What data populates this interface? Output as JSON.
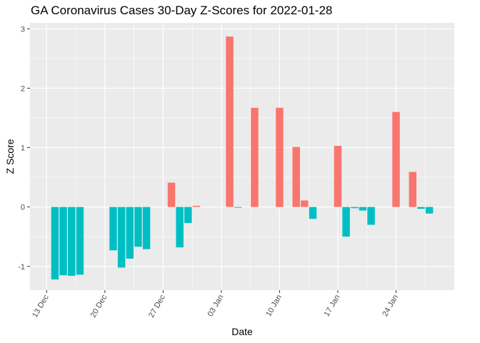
{
  "chart_data": {
    "type": "bar",
    "title": "GA Coronavirus Cases 30-Day Z-Scores for 2022-01-28",
    "xlabel": "Date",
    "ylabel": "Z Score",
    "ylim": [
      -1.4,
      3.1
    ],
    "y_ticks": [
      -1,
      0,
      1,
      2,
      3
    ],
    "x_range": [
      "2021-12-11",
      "2022-01-31"
    ],
    "x_ticks": [
      {
        "date": "2021-12-13",
        "label": "13 Dec"
      },
      {
        "date": "2021-12-20",
        "label": "20 Dec"
      },
      {
        "date": "2021-12-27",
        "label": "27 Dec"
      },
      {
        "date": "2022-01-03",
        "label": "03 Jan"
      },
      {
        "date": "2022-01-10",
        "label": "10 Jan"
      },
      {
        "date": "2022-01-17",
        "label": "17 Jan"
      },
      {
        "date": "2022-01-24",
        "label": "24 Jan"
      }
    ],
    "grid": true,
    "colors": {
      "positive": "#F8766D",
      "negative": "#00BFC4",
      "panel": "#EBEBEB",
      "grid": "#FFFFFF"
    },
    "points": [
      {
        "date": "2021-12-14",
        "z": -1.22
      },
      {
        "date": "2021-12-15",
        "z": -1.15
      },
      {
        "date": "2021-12-16",
        "z": -1.16
      },
      {
        "date": "2021-12-17",
        "z": -1.14
      },
      {
        "date": "2021-12-21",
        "z": -0.73
      },
      {
        "date": "2021-12-22",
        "z": -1.02
      },
      {
        "date": "2021-12-23",
        "z": -0.87
      },
      {
        "date": "2021-12-24",
        "z": -0.67
      },
      {
        "date": "2021-12-25",
        "z": -0.71
      },
      {
        "date": "2021-12-28",
        "z": 0.41
      },
      {
        "date": "2021-12-29",
        "z": -0.68
      },
      {
        "date": "2021-12-30",
        "z": -0.27
      },
      {
        "date": "2021-12-31",
        "z": 0.02
      },
      {
        "date": "2022-01-04",
        "z": 2.87
      },
      {
        "date": "2022-01-05",
        "z": -0.01
      },
      {
        "date": "2022-01-07",
        "z": 1.67
      },
      {
        "date": "2022-01-10",
        "z": 1.67
      },
      {
        "date": "2022-01-12",
        "z": 1.01
      },
      {
        "date": "2022-01-13",
        "z": 0.11
      },
      {
        "date": "2022-01-14",
        "z": -0.2
      },
      {
        "date": "2022-01-17",
        "z": 1.03
      },
      {
        "date": "2022-01-18",
        "z": -0.5
      },
      {
        "date": "2022-01-19",
        "z": -0.02
      },
      {
        "date": "2022-01-20",
        "z": -0.06
      },
      {
        "date": "2022-01-21",
        "z": -0.3
      },
      {
        "date": "2022-01-24",
        "z": 1.6
      },
      {
        "date": "2022-01-26",
        "z": 0.59
      },
      {
        "date": "2022-01-27",
        "z": -0.03
      },
      {
        "date": "2022-01-28",
        "z": -0.11
      }
    ]
  }
}
